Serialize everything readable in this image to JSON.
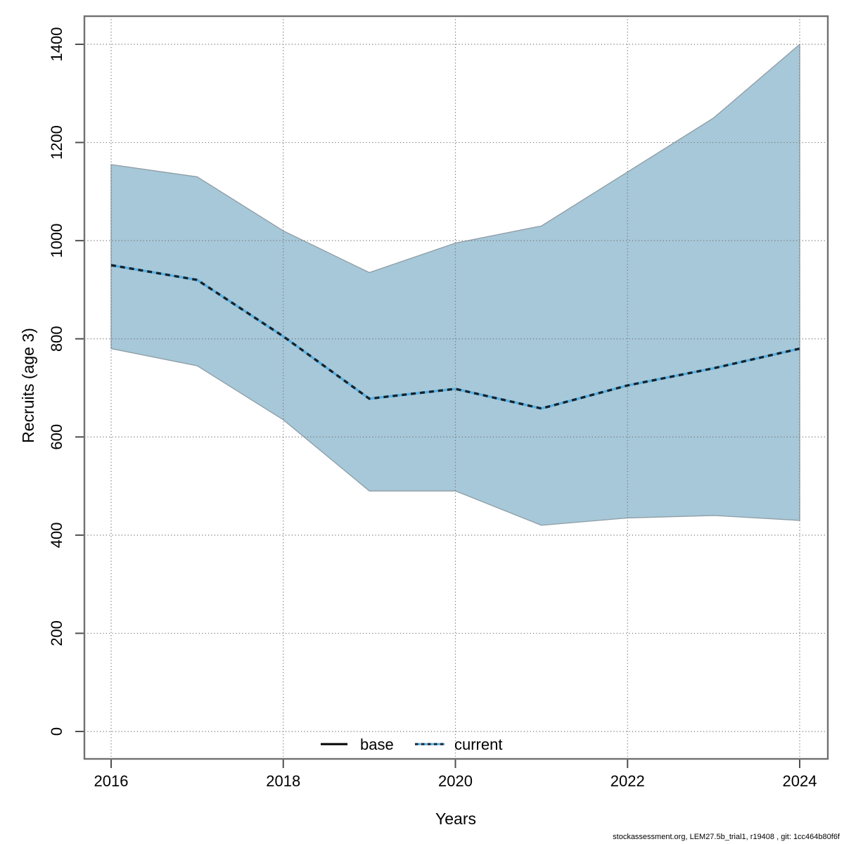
{
  "figure": {
    "footer": "stockassessment.org, LEM27.5b_trial1, r19408 , git: 1cc464b80f6f"
  },
  "legend": {
    "items": [
      {
        "label": "base",
        "line_style": "solid"
      },
      {
        "label": "current",
        "line_style": "dotted"
      }
    ]
  },
  "chart_data": {
    "type": "area",
    "title": "",
    "xlabel": "Years",
    "ylabel": "Recruits (age 3)",
    "x": [
      2016,
      2017,
      2018,
      2019,
      2020,
      2021,
      2022,
      2023,
      2024
    ],
    "x_ticks": [
      2016,
      2018,
      2020,
      2022,
      2024
    ],
    "y_ticks": [
      0,
      200,
      400,
      600,
      800,
      1000,
      1200,
      1400
    ],
    "xlim": [
      2015.7,
      2024.3
    ],
    "ylim": [
      -60,
      1460
    ],
    "grid": "dotted",
    "legend_position": "bottom-center-inside",
    "legend_entries": [
      "base",
      "current"
    ],
    "series": [
      {
        "name": "current (median)",
        "type": "line",
        "style": "dotted",
        "values": [
          950,
          920,
          805,
          678,
          698,
          658,
          705,
          740,
          780
        ]
      },
      {
        "name": "confidence band lower",
        "type": "band-lower",
        "values": [
          780,
          745,
          635,
          490,
          490,
          420,
          435,
          440,
          430
        ]
      },
      {
        "name": "confidence band upper",
        "type": "band-upper",
        "values": [
          1155,
          1130,
          1020,
          935,
          995,
          1030,
          1140,
          1250,
          1400
        ]
      }
    ]
  },
  "colors": {
    "band_fill": "#a6c8d9",
    "band_edge": "#8f9ca4",
    "line_light": "#57b1e3",
    "line_dark": "#15232c",
    "base_line": "#000000",
    "grid": "#757575",
    "frame": "#707070",
    "tick": "#4f4f4f",
    "text": "#000000"
  }
}
